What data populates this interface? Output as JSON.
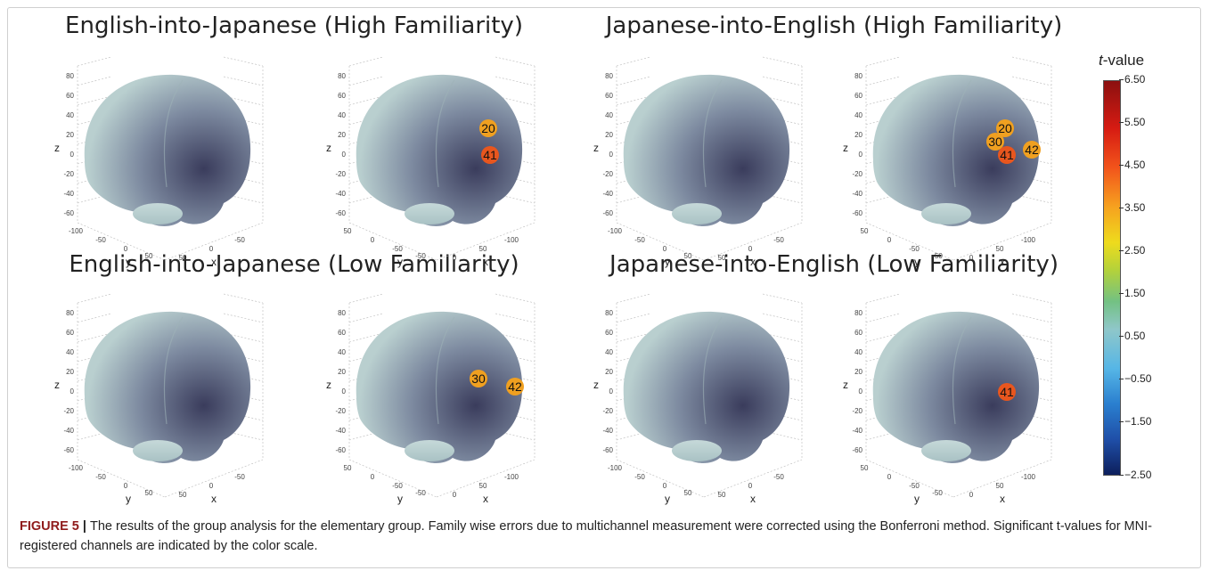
{
  "panels": [
    {
      "title": "English-into-Japanese (High Familiarity)"
    },
    {
      "title": "Japanese-into-English (High Familiarity)"
    },
    {
      "title": "English-into-Japanese (Low Familiarity)"
    },
    {
      "title": "Japanese-into-English (Low Familiarity)"
    }
  ],
  "plots": [
    {
      "channels": []
    },
    {
      "channels": [
        "20",
        "41"
      ]
    },
    {
      "channels": []
    },
    {
      "channels": [
        "20",
        "30",
        "41",
        "42"
      ]
    },
    {
      "channels": []
    },
    {
      "channels": [
        "30",
        "42"
      ]
    },
    {
      "channels": []
    },
    {
      "channels": [
        "41"
      ]
    }
  ],
  "axes": {
    "z_label": "z",
    "x_label": "x",
    "y_label": "y",
    "z_ticks_left": [
      "80",
      "60",
      "40",
      "20",
      "0",
      "-20",
      "-40",
      "-60"
    ],
    "z_ticks_right": [
      "80",
      "60",
      "40",
      "20",
      "0",
      "-20",
      "-40",
      "-60"
    ],
    "bottom_ticks_left": [
      "-100",
      "-50",
      "0",
      "50",
      "50",
      "0",
      "-50"
    ],
    "bottom_ticks_right": [
      "50",
      "0",
      "-50",
      "-50",
      "0",
      "50",
      "-100"
    ]
  },
  "colorbar": {
    "title_italic": "t",
    "title_rest": "-value",
    "ticks": [
      "6.50",
      "5.50",
      "4.50",
      "3.50",
      "2.50",
      "1.50",
      "0.50",
      "−0.50",
      "−1.50",
      "−2.50"
    ]
  },
  "caption": {
    "label": "FIGURE 5",
    "separator": " | ",
    "text": "The results of the group analysis for the elementary group. Family wise errors due to multichannel measurement were corrected using the Bonferroni method. Significant t-values for MNI-registered channels are indicated by the color scale."
  },
  "colors": {
    "brain_light": "#b9cfcf",
    "brain_dark": "#3a3c5c",
    "channel_orange": "#f0a020",
    "channel_red": "#e8561e",
    "caption_label": "#8f1b1b"
  }
}
